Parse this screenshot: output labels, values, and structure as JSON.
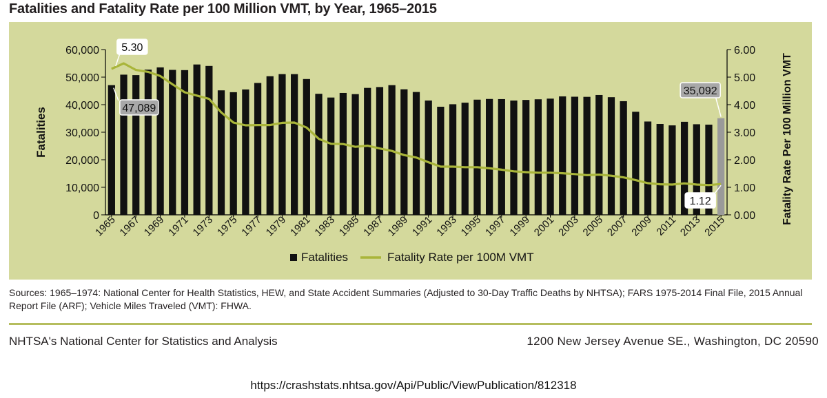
{
  "title": "Fatalities and Fatality Rate per 100 Million VMT, by Year, 1965–2015",
  "sources": "Sources: 1965–1974: National Center for Health Statistics, HEW, and State Accident Summaries (Adjusted to 30-Day Traffic Deaths by NHTSA); FARS 1975-2014 Final File, 2015 Annual Report File (ARF); Vehicle Miles Traveled (VMT): FHWA.",
  "footer": {
    "left": "NHTSA's National Center for Statistics and Analysis",
    "right": "1200 New Jersey Avenue SE., Washington, DC 20590"
  },
  "url": "https://crashstats.nhtsa.gov/Api/Public/ViewPublication/812318",
  "colors": {
    "panel": "#d4d99c",
    "bar": "#111111",
    "highlight_bar": "#9a9a9a",
    "line": "#a9b53a",
    "callout": "#a8a8a8"
  },
  "chart_data": {
    "type": "bar",
    "title": "Fatalities and Fatality Rate per 100 Million VMT, by Year, 1965–2015",
    "xlabel": "",
    "ylabel": "Fatalities",
    "y2label": "Fatality Rate Per 100 Million VMT",
    "ylim": [
      0,
      60000
    ],
    "y2lim": [
      0,
      6
    ],
    "yticks": [
      "0",
      "10,000",
      "20,000",
      "30,000",
      "40,000",
      "50,000",
      "60,000"
    ],
    "y2ticks": [
      "0.00",
      "1.00",
      "2.00",
      "3.00",
      "4.00",
      "5.00",
      "6.00"
    ],
    "grid": false,
    "categories": [
      "1965",
      "1966",
      "1967",
      "1968",
      "1969",
      "1970",
      "1971",
      "1972",
      "1973",
      "1974",
      "1975",
      "1976",
      "1977",
      "1978",
      "1979",
      "1980",
      "1981",
      "1982",
      "1983",
      "1984",
      "1985",
      "1986",
      "1987",
      "1988",
      "1989",
      "1990",
      "1991",
      "1992",
      "1993",
      "1994",
      "1995",
      "1996",
      "1997",
      "1998",
      "1999",
      "2000",
      "2001",
      "2002",
      "2003",
      "2004",
      "2005",
      "2006",
      "2007",
      "2008",
      "2009",
      "2010",
      "2011",
      "2012",
      "2013",
      "2014",
      "2015"
    ],
    "xtick_labels": [
      "1965",
      "1967",
      "1969",
      "1971",
      "1973",
      "1975",
      "1977",
      "1979",
      "1981",
      "1983",
      "1985",
      "1987",
      "1989",
      "1991",
      "1993",
      "1995",
      "1997",
      "1999",
      "2001",
      "2003",
      "2005",
      "2007",
      "2009",
      "2011",
      "2013",
      "2015"
    ],
    "series": [
      {
        "name": "Fatalities",
        "type": "bar",
        "axis": "left",
        "values": [
          47089,
          50894,
          50724,
          52725,
          53543,
          52627,
          52542,
          54589,
          54052,
          45196,
          44525,
          45523,
          47878,
          50331,
          51093,
          51091,
          49301,
          43945,
          42589,
          44257,
          43825,
          46087,
          46390,
          47087,
          45582,
          44599,
          41508,
          39250,
          40150,
          40716,
          41817,
          42065,
          42013,
          41501,
          41717,
          41945,
          42196,
          43005,
          42884,
          42836,
          43510,
          42708,
          41259,
          37423,
          33883,
          32999,
          32479,
          33782,
          32893,
          32744,
          35092
        ]
      },
      {
        "name": "Fatality Rate per 100M VMT",
        "type": "line",
        "axis": "right",
        "values": [
          5.3,
          5.5,
          5.26,
          5.19,
          5.04,
          4.74,
          4.45,
          4.33,
          4.21,
          3.72,
          3.35,
          3.25,
          3.26,
          3.26,
          3.34,
          3.35,
          3.17,
          2.76,
          2.58,
          2.57,
          2.47,
          2.51,
          2.41,
          2.32,
          2.17,
          2.08,
          1.91,
          1.75,
          1.75,
          1.73,
          1.73,
          1.69,
          1.64,
          1.58,
          1.55,
          1.53,
          1.53,
          1.51,
          1.48,
          1.44,
          1.46,
          1.42,
          1.36,
          1.26,
          1.15,
          1.11,
          1.1,
          1.14,
          1.1,
          1.08,
          1.12
        ]
      }
    ],
    "annotations": [
      {
        "label": "47,089",
        "series": "Fatalities",
        "year": "1965"
      },
      {
        "label": "5.30",
        "series": "Fatality Rate per 100M VMT",
        "year": "1965"
      },
      {
        "label": "35,092",
        "series": "Fatalities",
        "year": "2015"
      },
      {
        "label": "1.12",
        "series": "Fatality Rate per 100M VMT",
        "year": "2015"
      }
    ],
    "highlight_year": "2015",
    "legend": [
      "Fatalities",
      "Fatality Rate per 100M VMT"
    ],
    "legend_position": "bottom-center"
  }
}
